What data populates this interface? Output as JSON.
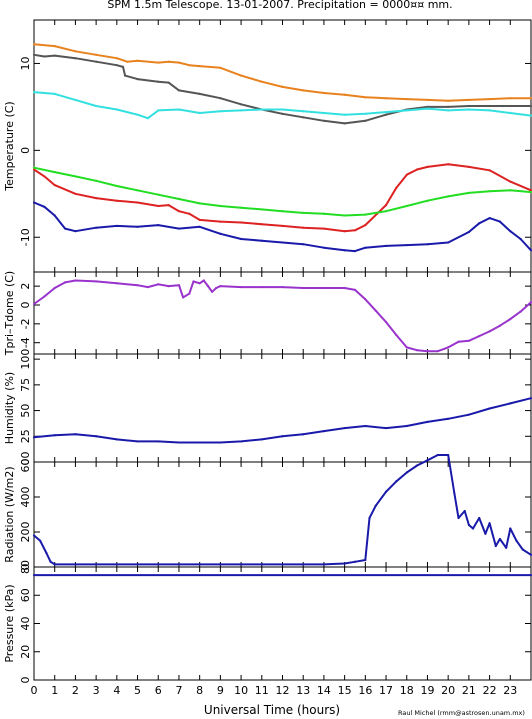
{
  "header": {
    "title": "SPM 1.5m Telescope. 13-01-2007. Precipitation = 0000¤¤ mm.",
    "credit": "Raul Michel (rmm@astrosen.unam.mx)",
    "xlabel": "Universal Time (hours)"
  },
  "colors": {
    "orange": "#e8821e",
    "dark_gray": "#555555",
    "cyan": "#33e0e0",
    "red": "#dd2222",
    "green": "#22dd22",
    "blue": "#1a1aaa",
    "purple": "#9933cc"
  },
  "chart_data": [
    {
      "type": "line",
      "panel": "temperature",
      "ylabel": "Temperature (C)",
      "xlim": [
        0,
        24
      ],
      "ylim": [
        -14,
        15
      ],
      "yticks": [
        -10,
        0,
        10
      ],
      "xticks": [
        0,
        1,
        2,
        3,
        4,
        5,
        6,
        7,
        8,
        9,
        10,
        11,
        12,
        13,
        14,
        15,
        16,
        17,
        18,
        19,
        20,
        21,
        22,
        23
      ],
      "series": [
        {
          "color": "orange",
          "x": [
            0,
            1,
            2,
            3,
            4,
            4.5,
            5,
            6,
            6.5,
            7,
            7.5,
            8,
            9,
            10,
            11,
            12,
            13,
            14,
            15,
            16,
            17,
            18,
            19,
            20,
            21,
            22,
            23,
            24
          ],
          "y": [
            12.2,
            12,
            11.4,
            11,
            10.6,
            10.2,
            10.3,
            10.1,
            10.2,
            10.1,
            9.8,
            9.7,
            9.5,
            8.6,
            7.9,
            7.3,
            6.9,
            6.6,
            6.4,
            6.1,
            6.0,
            5.9,
            5.8,
            5.7,
            5.8,
            5.9,
            6.0,
            6.0
          ]
        },
        {
          "color": "dark_gray",
          "x": [
            0,
            0.5,
            1,
            2,
            3,
            4,
            4.3,
            4.4,
            5,
            6,
            6.5,
            7,
            8,
            9,
            10,
            11,
            12,
            13,
            14,
            15,
            16,
            17,
            18,
            19,
            20,
            21,
            22,
            23,
            24
          ],
          "y": [
            11,
            10.8,
            10.9,
            10.6,
            10.2,
            9.8,
            9.6,
            8.6,
            8.2,
            7.9,
            7.8,
            6.9,
            6.5,
            6.0,
            5.3,
            4.7,
            4.2,
            3.8,
            3.4,
            3.1,
            3.4,
            4.1,
            4.7,
            5.0,
            5.0,
            5.1,
            5.1,
            5.1,
            5.1
          ]
        },
        {
          "color": "cyan",
          "x": [
            0,
            1,
            2,
            3,
            4,
            5,
            5.5,
            6,
            7,
            8,
            9,
            10,
            11,
            12,
            13,
            14,
            15,
            16,
            17,
            18,
            19,
            20,
            21,
            22,
            23,
            24
          ],
          "y": [
            6.7,
            6.5,
            5.8,
            5.1,
            4.7,
            4.1,
            3.7,
            4.6,
            4.7,
            4.3,
            4.5,
            4.6,
            4.7,
            4.7,
            4.5,
            4.3,
            4.1,
            4.2,
            4.4,
            4.6,
            4.8,
            4.6,
            4.7,
            4.6,
            4.3,
            4.0
          ]
        },
        {
          "color": "red",
          "x": [
            0,
            0.5,
            1,
            2,
            3,
            4,
            5,
            6,
            6.5,
            7,
            7.5,
            8,
            9,
            10,
            11,
            12,
            13,
            14,
            15,
            15.5,
            16,
            17,
            17.5,
            18,
            18.5,
            19,
            20,
            21,
            22,
            23,
            24
          ],
          "y": [
            -2.2,
            -3,
            -4,
            -5,
            -5.5,
            -5.8,
            -6,
            -6.4,
            -6.3,
            -7,
            -7.3,
            -8,
            -8.2,
            -8.3,
            -8.5,
            -8.7,
            -8.9,
            -9.0,
            -9.3,
            -9.2,
            -8.6,
            -6.3,
            -4.3,
            -2.8,
            -2.2,
            -1.9,
            -1.6,
            -1.9,
            -2.3,
            -3.6,
            -4.6
          ]
        },
        {
          "color": "green",
          "x": [
            0,
            1,
            2,
            3,
            4,
            5,
            6,
            7,
            8,
            9,
            10,
            11,
            12,
            13,
            14,
            15,
            16,
            17,
            18,
            19,
            20,
            21,
            22,
            23,
            24
          ],
          "y": [
            -2.0,
            -2.5,
            -3,
            -3.5,
            -4.1,
            -4.6,
            -5.1,
            -5.6,
            -6.1,
            -6.4,
            -6.6,
            -6.8,
            -7.0,
            -7.2,
            -7.3,
            -7.5,
            -7.4,
            -7.0,
            -6.4,
            -5.8,
            -5.3,
            -4.9,
            -4.7,
            -4.6,
            -4.8
          ]
        },
        {
          "color": "blue",
          "x": [
            0,
            0.5,
            1,
            1.5,
            2,
            3,
            4,
            5,
            6,
            7,
            8,
            9,
            10,
            11,
            12,
            13,
            14,
            15,
            15.5,
            16,
            17,
            18,
            19,
            20,
            21,
            21.5,
            22,
            22.5,
            23,
            23.5,
            24
          ],
          "y": [
            -6,
            -6.5,
            -7.5,
            -9.0,
            -9.3,
            -8.9,
            -8.7,
            -8.8,
            -8.6,
            -9.0,
            -8.8,
            -9.6,
            -10.2,
            -10.4,
            -10.6,
            -10.8,
            -11.2,
            -11.5,
            -11.6,
            -11.2,
            -11.0,
            -10.9,
            -10.8,
            -10.6,
            -9.4,
            -8.4,
            -7.8,
            -8.2,
            -9.3,
            -10.2,
            -11.5
          ]
        }
      ]
    },
    {
      "type": "scatter",
      "panel": "tpri_tdome",
      "ylabel": "Tpri–Tdome (C)",
      "xlim": [
        0,
        24
      ],
      "ylim": [
        -5.2,
        3.5
      ],
      "yticks": [
        -4,
        -2,
        0,
        2
      ],
      "series": [
        {
          "color": "purple",
          "x": [
            0,
            0.5,
            1,
            1.5,
            2,
            3,
            4,
            5,
            5.5,
            6,
            6.5,
            7,
            7.2,
            7.5,
            7.7,
            8,
            8.2,
            8.4,
            8.6,
            8.8,
            9,
            10,
            11,
            12,
            13,
            14,
            15,
            15.5,
            16,
            16.5,
            17,
            17.5,
            18,
            18.5,
            19,
            19.5,
            20,
            20.5,
            21,
            21.5,
            22,
            22.5,
            23,
            23.5,
            24
          ],
          "y": [
            0.1,
            0.9,
            1.8,
            2.4,
            2.6,
            2.5,
            2.3,
            2.1,
            1.9,
            2.2,
            2.0,
            2.1,
            0.8,
            1.2,
            2.5,
            2.3,
            2.6,
            2.0,
            1.4,
            1.8,
            2.0,
            1.9,
            1.9,
            1.9,
            1.8,
            1.8,
            1.8,
            1.6,
            0.6,
            -0.6,
            -1.8,
            -3.2,
            -4.5,
            -4.8,
            -4.9,
            -4.9,
            -4.5,
            -3.9,
            -3.8,
            -3.3,
            -2.8,
            -2.2,
            -1.5,
            -0.7,
            0.3
          ]
        }
      ]
    },
    {
      "type": "line",
      "panel": "humidity",
      "ylabel": "Humidity (%)",
      "xlim": [
        0,
        24
      ],
      "ylim": [
        0,
        105
      ],
      "yticks": [
        0,
        25,
        50,
        75,
        100
      ],
      "series": [
        {
          "color": "blue",
          "x": [
            0,
            1,
            2,
            3,
            4,
            5,
            6,
            7,
            8,
            9,
            10,
            11,
            12,
            13,
            14,
            15,
            16,
            17,
            18,
            19,
            20,
            21,
            22,
            23,
            24
          ],
          "y": [
            24,
            26,
            27,
            25,
            22,
            20,
            20,
            19,
            19,
            19,
            20,
            22,
            25,
            27,
            30,
            33,
            35,
            33,
            35,
            39,
            42,
            46,
            52,
            57,
            62
          ]
        }
      ]
    },
    {
      "type": "scatter",
      "panel": "radiation",
      "ylabel": "Radiation (W/m2)",
      "xlim": [
        0,
        24
      ],
      "ylim": [
        0,
        600
      ],
      "yticks": [
        0,
        200,
        400,
        600
      ],
      "series": [
        {
          "color": "blue",
          "x": [
            0,
            0.3,
            0.6,
            0.8,
            1,
            2,
            3,
            4,
            5,
            6,
            7,
            8,
            9,
            10,
            11,
            12,
            13,
            14,
            15,
            15.5,
            16,
            16.2,
            16.5,
            17,
            17.5,
            18,
            18.5,
            19,
            19.5,
            20,
            20.3,
            20.5,
            20.8,
            21,
            21.2,
            21.5,
            21.8,
            22,
            22.3,
            22.5,
            22.8,
            23,
            23.3,
            23.6,
            24
          ],
          "y": [
            180,
            150,
            80,
            30,
            15,
            15,
            15,
            15,
            15,
            15,
            15,
            15,
            15,
            15,
            15,
            15,
            15,
            15,
            20,
            30,
            40,
            280,
            350,
            430,
            490,
            540,
            580,
            610,
            640,
            640,
            420,
            280,
            320,
            240,
            220,
            280,
            190,
            250,
            120,
            160,
            110,
            220,
            150,
            100,
            70
          ]
        }
      ]
    },
    {
      "type": "line",
      "panel": "pressure",
      "ylabel": "Pressure (kPa)",
      "xlim": [
        0,
        24
      ],
      "ylim": [
        0,
        80
      ],
      "yticks": [
        0,
        20,
        40,
        60,
        80
      ],
      "series": [
        {
          "color": "blue",
          "x": [
            0,
            24
          ],
          "y": [
            74.3,
            74.3
          ]
        }
      ]
    }
  ]
}
